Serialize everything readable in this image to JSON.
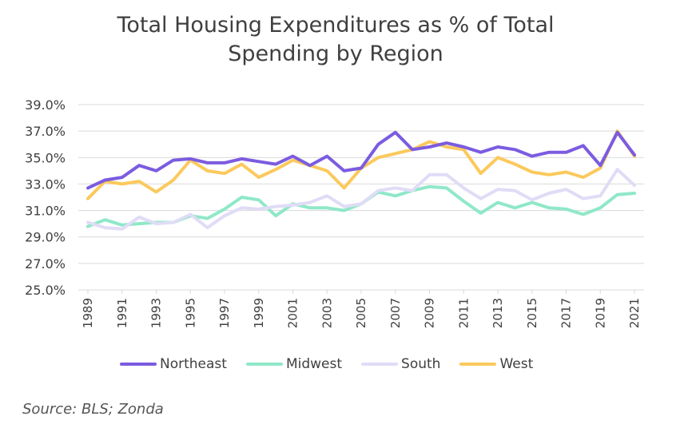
{
  "chart_data": {
    "type": "line",
    "title_lines": [
      "Total Housing Expenditures as % of Total",
      "Spending by Region"
    ],
    "ylim": [
      25.0,
      39.0
    ],
    "yticks": [
      "39.0%",
      "37.0%",
      "35.0%",
      "33.0%",
      "31.0%",
      "29.0%",
      "27.0%",
      "25.0%"
    ],
    "ytick_values": [
      39,
      37,
      35,
      33,
      31,
      29,
      27,
      25
    ],
    "x": [
      1989,
      1990,
      1991,
      1992,
      1993,
      1994,
      1995,
      1996,
      1997,
      1998,
      1999,
      2000,
      2001,
      2002,
      2003,
      2004,
      2005,
      2006,
      2007,
      2008,
      2009,
      2010,
      2011,
      2012,
      2013,
      2014,
      2015,
      2016,
      2017,
      2018,
      2019,
      2020,
      2021
    ],
    "xtick_labels": [
      "1989",
      "1991",
      "1993",
      "1995",
      "1997",
      "1999",
      "2001",
      "2003",
      "2005",
      "2007",
      "2009",
      "2011",
      "2013",
      "2015",
      "2017",
      "2019",
      "2021"
    ],
    "grid": true,
    "legend_position": "bottom",
    "series": [
      {
        "name": "Northeast",
        "color": "#7b5ce0",
        "values": [
          32.7,
          33.3,
          33.5,
          34.4,
          34.0,
          34.8,
          34.9,
          34.6,
          34.6,
          34.9,
          34.7,
          34.5,
          35.1,
          34.4,
          35.1,
          34.0,
          34.2,
          36.0,
          36.9,
          35.6,
          35.8,
          36.1,
          35.8,
          35.4,
          35.8,
          35.6,
          35.1,
          35.4,
          35.4,
          35.9,
          34.4,
          36.9,
          35.2
        ]
      },
      {
        "name": "Midwest",
        "color": "#8fe8c8",
        "values": [
          29.8,
          30.3,
          29.9,
          30.0,
          30.1,
          30.1,
          30.6,
          30.4,
          31.1,
          32.0,
          31.8,
          30.6,
          31.5,
          31.2,
          31.2,
          31.0,
          31.5,
          32.4,
          32.1,
          32.5,
          32.8,
          32.7,
          31.7,
          30.8,
          31.6,
          31.2,
          31.6,
          31.2,
          31.1,
          30.7,
          31.2,
          32.2,
          32.3
        ]
      },
      {
        "name": "South",
        "color": "#e0dcf6",
        "values": [
          30.1,
          29.7,
          29.6,
          30.5,
          30.0,
          30.1,
          30.7,
          29.7,
          30.6,
          31.2,
          31.1,
          31.3,
          31.4,
          31.6,
          32.1,
          31.3,
          31.5,
          32.5,
          32.7,
          32.5,
          33.7,
          33.7,
          32.7,
          31.9,
          32.6,
          32.5,
          31.8,
          32.3,
          32.6,
          31.9,
          32.1,
          34.1,
          32.9
        ]
      },
      {
        "name": "West",
        "color": "#fbc95c",
        "values": [
          31.9,
          33.2,
          33.0,
          33.2,
          32.4,
          33.3,
          34.8,
          34.0,
          33.8,
          34.5,
          33.5,
          34.1,
          34.8,
          34.4,
          34.0,
          32.7,
          34.2,
          35.0,
          35.3,
          35.6,
          36.2,
          35.8,
          35.6,
          33.8,
          35.0,
          34.5,
          33.9,
          33.7,
          33.9,
          33.5,
          34.2,
          37.0,
          35.1
        ]
      }
    ]
  },
  "source": "Source: BLS; Zonda"
}
